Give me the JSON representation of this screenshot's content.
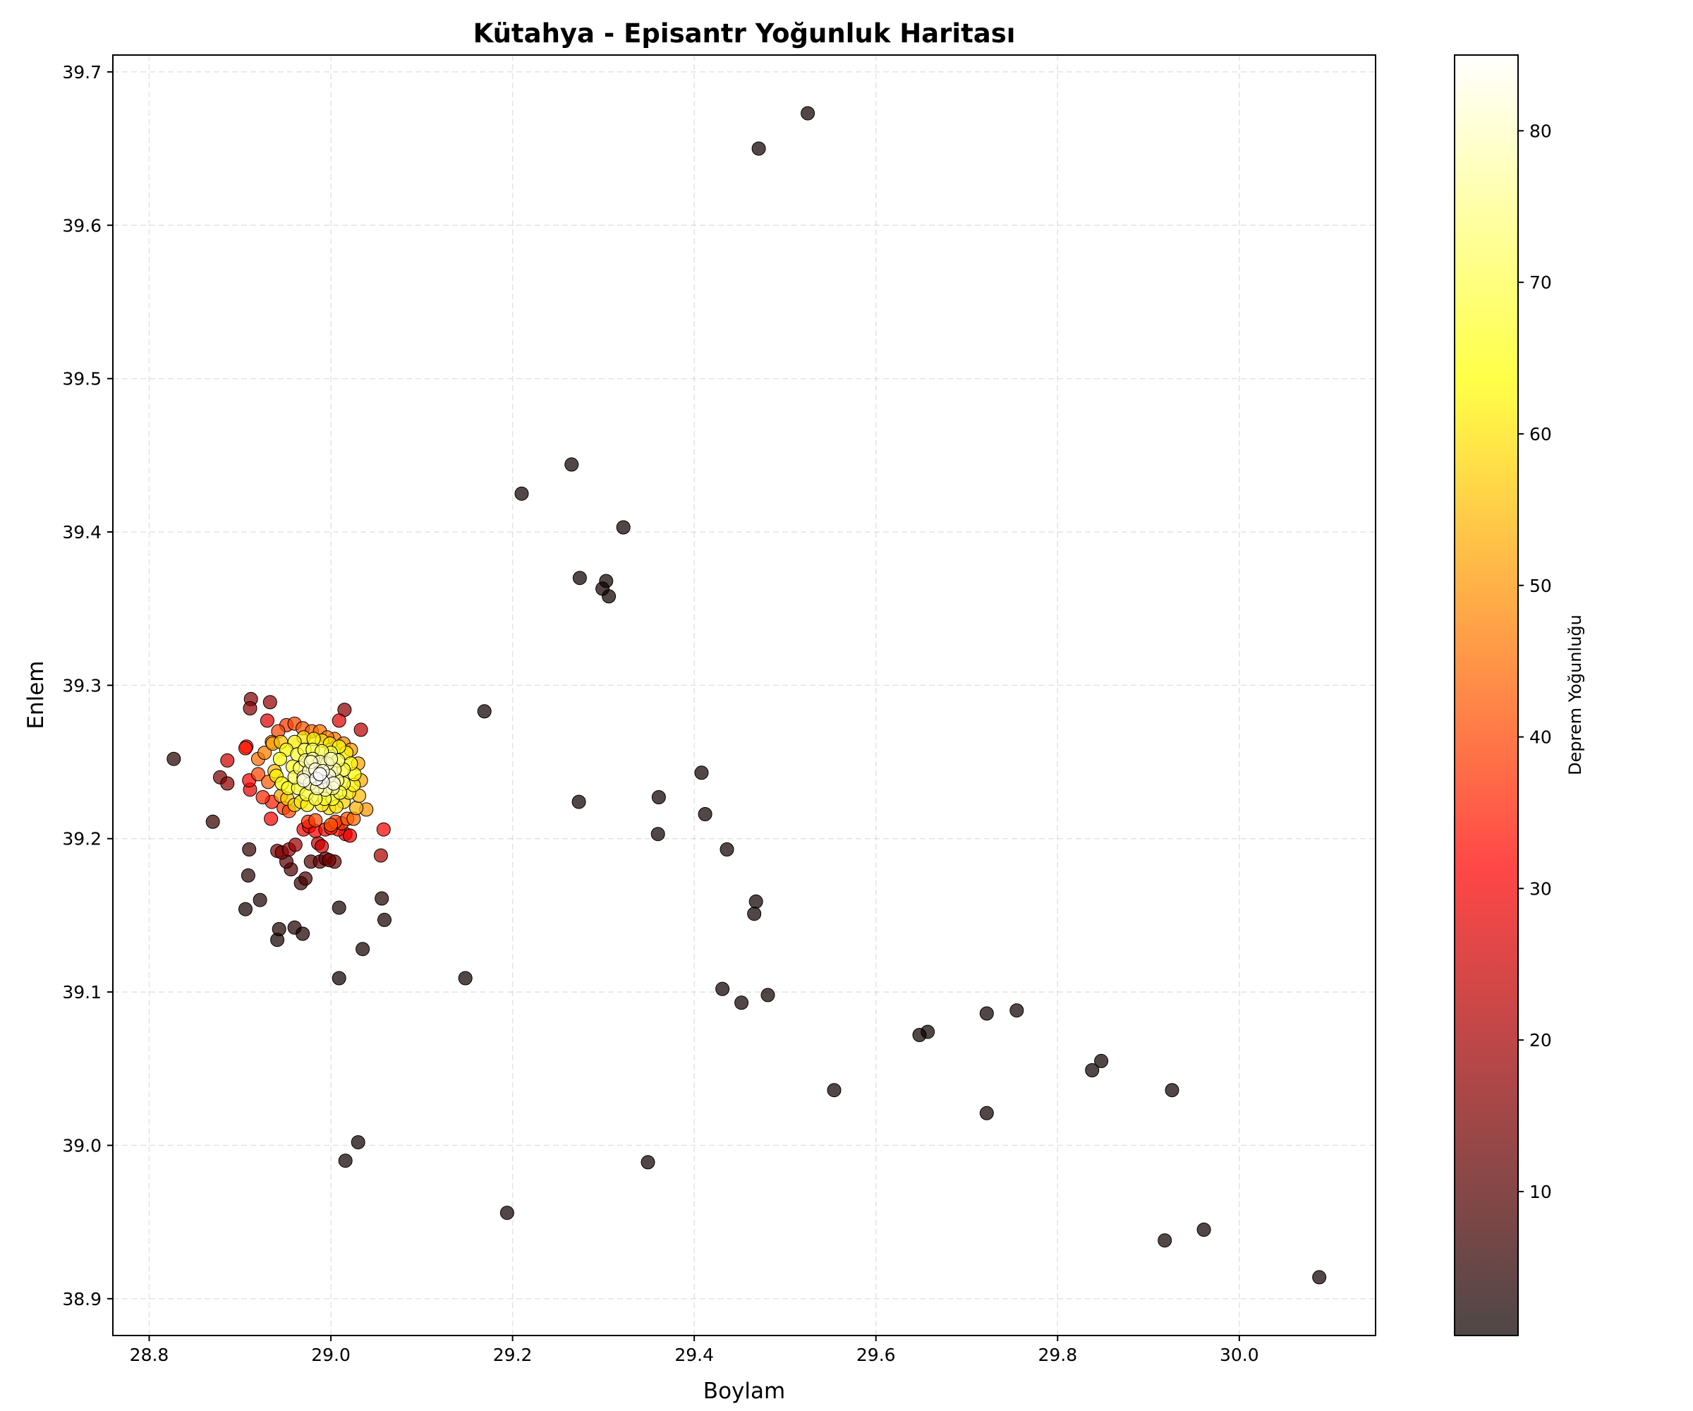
{
  "chart_data": {
    "type": "scatter",
    "title": "Kütahya - Episantr Yoğunluk Haritası",
    "xlabel": "Boylam",
    "ylabel": "Enlem",
    "xlim": [
      28.76,
      30.15
    ],
    "ylim": [
      38.876,
      39.711
    ],
    "xticks": [
      28.8,
      29.0,
      29.2,
      29.4,
      29.6,
      29.8,
      30.0
    ],
    "xtick_labels": [
      "28.8",
      "29.0",
      "29.2",
      "29.4",
      "29.6",
      "29.8",
      "30.0"
    ],
    "yticks": [
      38.9,
      39.0,
      39.1,
      39.2,
      39.3,
      39.4,
      39.5,
      39.6,
      39.7
    ],
    "ytick_labels": [
      "38.9",
      "39.0",
      "39.1",
      "39.2",
      "39.3",
      "39.4",
      "39.5",
      "39.6",
      "39.7"
    ],
    "grid": true,
    "colormap": "hot",
    "colorbar": {
      "label": "Deprem Yoğunluğu",
      "range": [
        0.5,
        85
      ],
      "ticks": [
        10,
        20,
        30,
        40,
        50,
        60,
        70,
        80
      ],
      "tick_labels": [
        "10",
        "20",
        "30",
        "40",
        "50",
        "60",
        "70",
        "80"
      ]
    },
    "points": [
      [
        29.471,
        39.65,
        1
      ],
      [
        29.525,
        39.673,
        1
      ],
      [
        29.265,
        39.444,
        1
      ],
      [
        29.21,
        39.425,
        1
      ],
      [
        29.322,
        39.403,
        1
      ],
      [
        29.274,
        39.37,
        1
      ],
      [
        29.303,
        39.368,
        1
      ],
      [
        29.299,
        39.363,
        1
      ],
      [
        29.306,
        39.358,
        1
      ],
      [
        29.169,
        39.283,
        1
      ],
      [
        29.408,
        39.243,
        1
      ],
      [
        29.361,
        39.227,
        1
      ],
      [
        29.273,
        39.224,
        1
      ],
      [
        29.412,
        39.216,
        1
      ],
      [
        29.36,
        39.203,
        1
      ],
      [
        29.436,
        39.193,
        1
      ],
      [
        29.468,
        39.159,
        1
      ],
      [
        29.466,
        39.151,
        1
      ],
      [
        29.148,
        39.109,
        1
      ],
      [
        29.431,
        39.102,
        1
      ],
      [
        29.452,
        39.093,
        1
      ],
      [
        29.481,
        39.098,
        1
      ],
      [
        29.722,
        39.086,
        1
      ],
      [
        29.755,
        39.088,
        1
      ],
      [
        29.657,
        39.074,
        1
      ],
      [
        29.648,
        39.072,
        1
      ],
      [
        29.848,
        39.055,
        1
      ],
      [
        29.838,
        39.049,
        1
      ],
      [
        29.554,
        39.036,
        1
      ],
      [
        29.926,
        39.036,
        1
      ],
      [
        29.722,
        39.021,
        1
      ],
      [
        29.03,
        39.002,
        1
      ],
      [
        29.016,
        38.99,
        1
      ],
      [
        29.349,
        38.989,
        1
      ],
      [
        29.194,
        38.956,
        1
      ],
      [
        29.961,
        38.945,
        1
      ],
      [
        29.918,
        38.938,
        1
      ],
      [
        30.088,
        38.914,
        1
      ],
      [
        29.009,
        39.109,
        1
      ],
      [
        29.035,
        39.128,
        2
      ],
      [
        29.059,
        39.147,
        2
      ],
      [
        29.056,
        39.161,
        3
      ],
      [
        29.009,
        39.155,
        2
      ],
      [
        28.941,
        39.134,
        2
      ],
      [
        28.943,
        39.141,
        3
      ],
      [
        28.96,
        39.142,
        3
      ],
      [
        28.969,
        39.138,
        3
      ],
      [
        28.922,
        39.16,
        3
      ],
      [
        28.906,
        39.154,
        2
      ],
      [
        28.909,
        39.176,
        4
      ],
      [
        28.91,
        39.193,
        6
      ],
      [
        28.827,
        39.252,
        4
      ],
      [
        28.87,
        39.211,
        6
      ],
      [
        28.967,
        39.171,
        7
      ],
      [
        28.972,
        39.174,
        8
      ],
      [
        28.956,
        39.18,
        9
      ],
      [
        28.951,
        39.185,
        10
      ],
      [
        28.978,
        39.185,
        10
      ],
      [
        28.988,
        39.185,
        11
      ],
      [
        28.994,
        39.187,
        12
      ],
      [
        28.998,
        39.186,
        13
      ],
      [
        29.004,
        39.185,
        12
      ],
      [
        28.941,
        39.192,
        14
      ],
      [
        28.946,
        39.191,
        15
      ],
      [
        28.954,
        39.193,
        17
      ],
      [
        28.961,
        39.196,
        18
      ],
      [
        29.055,
        39.189,
        20
      ],
      [
        28.986,
        39.197,
        22
      ],
      [
        28.99,
        39.195,
        24
      ],
      [
        28.878,
        39.24,
        14
      ],
      [
        28.886,
        39.236,
        16
      ],
      [
        28.886,
        39.251,
        24
      ],
      [
        28.911,
        39.232,
        27
      ],
      [
        28.91,
        39.238,
        30
      ],
      [
        28.911,
        39.285,
        16
      ],
      [
        28.912,
        39.291,
        15
      ],
      [
        28.933,
        39.289,
        17
      ],
      [
        29.015,
        39.284,
        16
      ],
      [
        28.93,
        39.277,
        26
      ],
      [
        29.033,
        39.271,
        22
      ],
      [
        29.009,
        39.277,
        26
      ],
      [
        29.058,
        39.206,
        31
      ],
      [
        29.016,
        39.203,
        27
      ],
      [
        29.021,
        39.202,
        28
      ],
      [
        28.97,
        39.206,
        29
      ],
      [
        28.976,
        39.208,
        30
      ],
      [
        28.983,
        39.205,
        31
      ],
      [
        28.994,
        39.206,
        32
      ],
      [
        29.0,
        39.207,
        34
      ],
      [
        29.008,
        39.206,
        33
      ],
      [
        28.907,
        39.26,
        32
      ],
      [
        28.906,
        39.259,
        34
      ],
      [
        28.934,
        39.213,
        32
      ],
      [
        28.935,
        39.224,
        35
      ],
      [
        28.925,
        39.227,
        36
      ],
      [
        28.948,
        39.22,
        38
      ],
      [
        28.954,
        39.218,
        40
      ],
      [
        28.975,
        39.211,
        37
      ],
      [
        28.983,
        39.212,
        40
      ],
      [
        29.005,
        39.211,
        39
      ],
      [
        29.012,
        39.21,
        38
      ],
      [
        29.018,
        39.213,
        42
      ],
      [
        29.025,
        39.213,
        44
      ],
      [
        29.0,
        39.209,
        42
      ],
      [
        28.92,
        39.242,
        40
      ],
      [
        28.931,
        39.237,
        43
      ],
      [
        28.92,
        39.252,
        45
      ],
      [
        28.927,
        39.256,
        47
      ],
      [
        28.935,
        39.263,
        44
      ],
      [
        28.942,
        39.27,
        40
      ],
      [
        28.951,
        39.274,
        38
      ],
      [
        28.96,
        39.275,
        40
      ],
      [
        28.969,
        39.272,
        42
      ],
      [
        28.979,
        39.27,
        44
      ],
      [
        28.988,
        39.27,
        45
      ],
      [
        28.996,
        39.266,
        47
      ],
      [
        29.004,
        39.265,
        46
      ],
      [
        29.014,
        39.262,
        48
      ],
      [
        29.022,
        39.258,
        50
      ],
      [
        29.03,
        39.249,
        52
      ],
      [
        29.033,
        39.238,
        53
      ],
      [
        29.031,
        39.228,
        55
      ],
      [
        29.039,
        39.219,
        50
      ],
      [
        29.028,
        39.22,
        54
      ],
      [
        28.945,
        39.228,
        52
      ],
      [
        28.938,
        39.244,
        55
      ],
      [
        28.936,
        39.262,
        53
      ],
      [
        28.945,
        39.263,
        56
      ],
      [
        28.952,
        39.226,
        57
      ],
      [
        28.96,
        39.222,
        58
      ],
      [
        28.967,
        39.224,
        60
      ],
      [
        28.974,
        39.222,
        61
      ],
      [
        28.99,
        39.222,
        60
      ],
      [
        28.998,
        39.22,
        59
      ],
      [
        29.006,
        39.221,
        60
      ],
      [
        29.014,
        39.224,
        58
      ],
      [
        29.02,
        39.23,
        60
      ],
      [
        29.025,
        39.235,
        62
      ],
      [
        29.026,
        39.242,
        63
      ],
      [
        29.022,
        39.249,
        64
      ],
      [
        29.017,
        39.256,
        62
      ],
      [
        29.009,
        39.26,
        63
      ],
      [
        28.999,
        39.262,
        61
      ],
      [
        28.99,
        39.264,
        60
      ],
      [
        28.981,
        39.265,
        62
      ],
      [
        28.97,
        39.266,
        60
      ],
      [
        28.96,
        39.263,
        61
      ],
      [
        28.951,
        39.258,
        63
      ],
      [
        28.944,
        39.252,
        64
      ],
      [
        28.94,
        39.241,
        62
      ],
      [
        28.946,
        39.236,
        64
      ],
      [
        28.953,
        39.233,
        65
      ],
      [
        28.958,
        39.247,
        66
      ],
      [
        28.963,
        39.255,
        67
      ],
      [
        28.971,
        39.258,
        68
      ],
      [
        28.98,
        39.258,
        69
      ],
      [
        28.99,
        39.257,
        70
      ],
      [
        29.0,
        39.256,
        69
      ],
      [
        29.008,
        39.251,
        70
      ],
      [
        29.014,
        39.245,
        68
      ],
      [
        29.014,
        39.236,
        67
      ],
      [
        29.01,
        39.23,
        68
      ],
      [
        29.002,
        39.226,
        67
      ],
      [
        28.993,
        39.226,
        68
      ],
      [
        28.983,
        39.226,
        69
      ],
      [
        28.973,
        39.229,
        68
      ],
      [
        28.964,
        39.233,
        67
      ],
      [
        28.96,
        39.24,
        70
      ],
      [
        28.966,
        39.246,
        73
      ],
      [
        28.972,
        39.251,
        75
      ],
      [
        28.98,
        39.252,
        77
      ],
      [
        28.988,
        39.25,
        78
      ],
      [
        28.996,
        39.249,
        77
      ],
      [
        29.004,
        39.245,
        76
      ],
      [
        29.007,
        39.238,
        75
      ],
      [
        29.002,
        39.233,
        76
      ],
      [
        28.994,
        39.232,
        77
      ],
      [
        28.985,
        39.233,
        78
      ],
      [
        28.977,
        39.236,
        77
      ],
      [
        28.97,
        39.24,
        76
      ],
      [
        28.976,
        39.244,
        80
      ],
      [
        28.983,
        39.245,
        82
      ],
      [
        28.991,
        39.244,
        83
      ],
      [
        28.998,
        39.241,
        82
      ],
      [
        28.991,
        39.237,
        84
      ],
      [
        28.984,
        39.239,
        85
      ],
      [
        28.97,
        39.238,
        84
      ],
      [
        29.003,
        39.236,
        83
      ],
      [
        28.988,
        39.242,
        85
      ],
      [
        29.0,
        39.252,
        79
      ],
      [
        28.978,
        39.25,
        80
      ]
    ]
  }
}
